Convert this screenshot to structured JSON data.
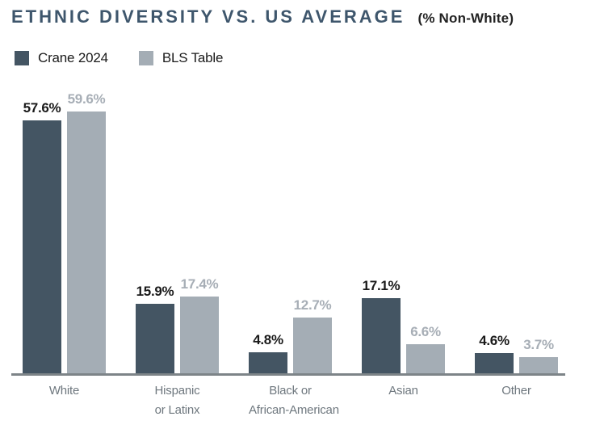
{
  "header": {
    "title": "ETHNIC DIVERSITY VS. US AVERAGE",
    "subtitle": "(% Non-White)"
  },
  "legend": [
    {
      "label": "Crane 2024",
      "color": "#445563"
    },
    {
      "label": "BLS Table",
      "color": "#A4ADB5"
    }
  ],
  "colors": {
    "title": "#3E566C",
    "subtitle": "#222222",
    "axis_line": "#7D8488",
    "category_label": "#6E777E",
    "series_bar": [
      "#445563",
      "#A4ADB5"
    ],
    "series_value_label": [
      "#1A1A1A",
      "#A7AEB6"
    ]
  },
  "chart_data": {
    "type": "bar",
    "title": "ETHNIC DIVERSITY VS. US AVERAGE",
    "subtitle": "(% Non-White)",
    "categories": [
      "White",
      "Hispanic or Latinx",
      "Black or African-American",
      "Asian",
      "Other"
    ],
    "category_lines": [
      [
        "White"
      ],
      [
        "Hispanic",
        "or Latinx"
      ],
      [
        "Black or",
        "African-American"
      ],
      [
        "Asian"
      ],
      [
        "Other"
      ]
    ],
    "series": [
      {
        "name": "Crane 2024",
        "values": [
          57.6,
          15.9,
          4.8,
          17.1,
          4.6
        ]
      },
      {
        "name": "BLS Table",
        "values": [
          59.6,
          17.4,
          12.7,
          6.6,
          3.7
        ]
      }
    ],
    "value_suffix": "%",
    "value_labels": [
      [
        "57.6%",
        "15.9%",
        "4.8%",
        "17.1%",
        "4.6%"
      ],
      [
        "59.6%",
        "17.4%",
        "12.7%",
        "6.6%",
        "3.7%"
      ]
    ],
    "ylim": [
      0,
      60
    ],
    "grid": false,
    "axis_labels_shown": false,
    "legend_position": "top-left"
  }
}
